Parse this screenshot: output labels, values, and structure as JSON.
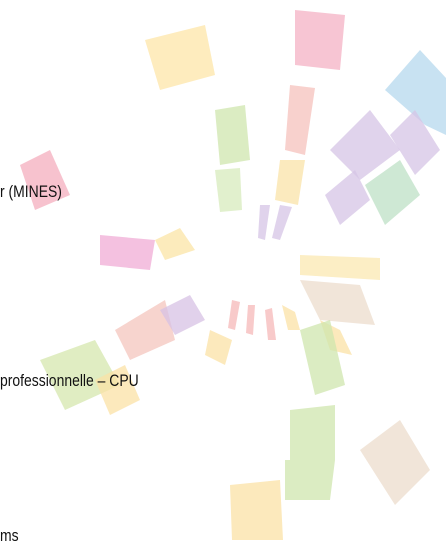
{
  "texts": {
    "line1": "r (MINES)",
    "line2": "professionnelle – CPU",
    "line3": "ms"
  }
}
